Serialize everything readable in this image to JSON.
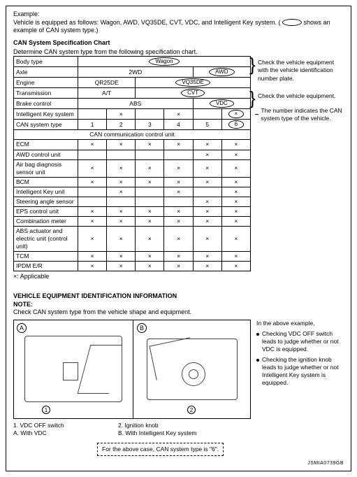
{
  "example": {
    "heading": "Example:",
    "text_before": "Vehicle is equipped as follows: Wagon, AWD, VQ35DE, CVT, VDC, and Intelligent Key system. (",
    "text_after": " shows an example of CAN system type.)"
  },
  "spec_chart": {
    "title": "CAN System Specification Chart",
    "subtitle": "Determine CAN system type from the following specification chart.",
    "rows": {
      "body_type": "Body type",
      "body_type_val": "Wagon",
      "axle": "Axle",
      "axle_vals": [
        "2WD",
        "AWD"
      ],
      "engine": "Engine",
      "engine_vals": [
        "QR25DE",
        "VQ35DE"
      ],
      "transmission": "Transmission",
      "trans_vals": [
        "A/T",
        "CVT"
      ],
      "brake": "Brake control",
      "brake_vals": [
        "ABS",
        "VDC"
      ],
      "ikey": "Intelligent Key system",
      "can_type": "CAN system type",
      "can_nums": [
        "1",
        "2",
        "3",
        "4",
        "5",
        "6"
      ],
      "ccu_header": "CAN communication control unit"
    },
    "units": [
      {
        "name": "ECM",
        "marks": [
          1,
          1,
          1,
          1,
          1,
          1
        ]
      },
      {
        "name": "AWD control unit",
        "marks": [
          0,
          0,
          0,
          0,
          1,
          1
        ]
      },
      {
        "name": "Air bag diagnosis sensor unit",
        "marks": [
          1,
          1,
          1,
          1,
          1,
          1
        ]
      },
      {
        "name": "BCM",
        "marks": [
          1,
          1,
          1,
          1,
          1,
          1
        ]
      },
      {
        "name": "Intelligent Key unit",
        "marks": [
          0,
          1,
          0,
          1,
          0,
          1
        ]
      },
      {
        "name": "Steering angle sensor",
        "marks": [
          0,
          0,
          0,
          0,
          1,
          1
        ]
      },
      {
        "name": "EPS control unit",
        "marks": [
          1,
          1,
          1,
          1,
          1,
          1
        ]
      },
      {
        "name": "Combination meter",
        "marks": [
          1,
          1,
          1,
          1,
          1,
          1
        ]
      },
      {
        "name": "ABS actuator and electric unit (control unit)",
        "marks": [
          1,
          1,
          1,
          1,
          1,
          1
        ]
      },
      {
        "name": "TCM",
        "marks": [
          1,
          1,
          1,
          1,
          1,
          1
        ]
      },
      {
        "name": "IPDM E/R",
        "marks": [
          1,
          1,
          1,
          1,
          1,
          1
        ]
      }
    ],
    "ikey_marks": [
      0,
      1,
      0,
      1,
      0,
      1
    ],
    "legend": "×: Applicable"
  },
  "annotations": {
    "a1": "Check the vehicle equipment with the vehicle identification number plate.",
    "a2": "Check the vehicle equipment.",
    "a3": "The number indicates the CAN system type of the vehicle."
  },
  "vei": {
    "title": "VEHICLE EQUIPMENT IDENTIFICATION INFORMATION",
    "note_label": "NOTE:",
    "note_text": "Check CAN system type from the vehicle shape and equipment.",
    "labels": {
      "A": "A",
      "B": "B",
      "c1": "1",
      "c2": "2"
    },
    "right_intro": "In the above example,",
    "bullet1": "Checking VDC OFF switch leads to judge whether or not VDC is equipped.",
    "bullet2": "Checking the ignition knob leads to judge whether or not Intelligent Key system is equipped.",
    "key": {
      "r1c1": "1. VDC OFF switch",
      "r1c2": "2. Ignition knob",
      "r2c1": "A. With VDC",
      "r2c2": "B. With Intelligent Key system"
    },
    "dashed": "For the above case, CAN system type is \"6\"."
  },
  "footer": "JSMIA0739GB",
  "colors": {
    "border": "#000000",
    "bg": "#ffffff"
  }
}
